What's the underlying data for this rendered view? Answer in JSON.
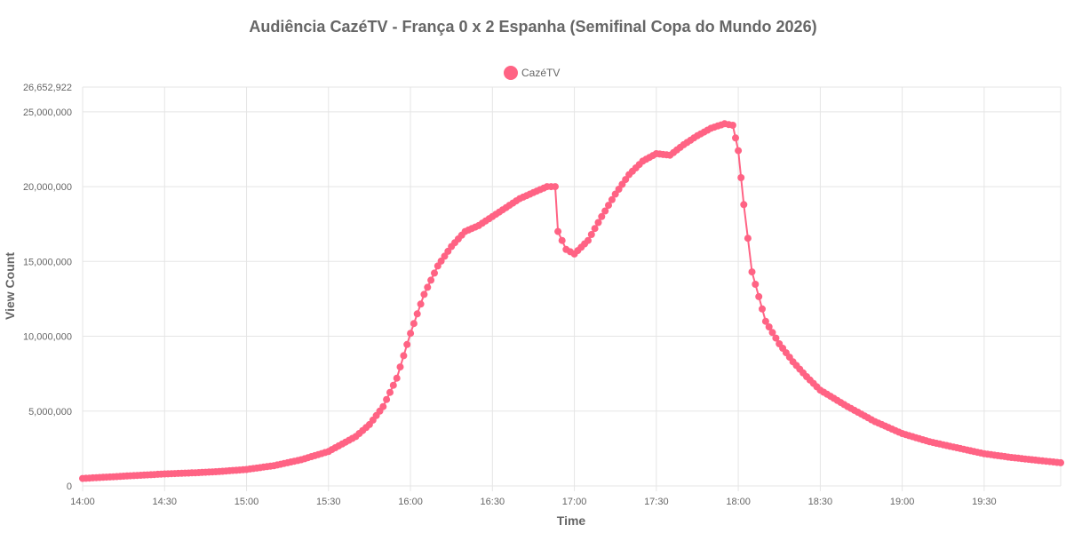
{
  "chart_data": {
    "type": "line",
    "title": "Audiência CazéTV - França 0 x 2 Espanha (Semifinal Copa do Mundo 2026)",
    "xlabel": "Time",
    "ylabel": "View Count",
    "xlim": [
      "14:00",
      "19:58"
    ],
    "ylim": [
      0,
      26652922
    ],
    "x_ticks": [
      "14:00",
      "14:30",
      "15:00",
      "15:30",
      "16:00",
      "16:30",
      "17:00",
      "17:30",
      "18:00",
      "18:30",
      "19:00",
      "19:30"
    ],
    "y_ticks": [
      "0",
      "5,000,000",
      "10,000,000",
      "15,000,000",
      "20,000,000",
      "25,000,000",
      "26,652,922"
    ],
    "y_tick_values": [
      0,
      5000000,
      10000000,
      15000000,
      20000000,
      25000000,
      26652922
    ],
    "grid": true,
    "legend_position": "top-center",
    "colors": {
      "series": "#ff6384",
      "grid": "#e5e5e5",
      "text": "#666666"
    },
    "series": [
      {
        "name": "CazéTV",
        "points": [
          [
            "14:00",
            500000
          ],
          [
            "14:10",
            600000
          ],
          [
            "14:20",
            700000
          ],
          [
            "14:30",
            800000
          ],
          [
            "14:40",
            870000
          ],
          [
            "14:50",
            960000
          ],
          [
            "15:00",
            1100000
          ],
          [
            "15:10",
            1350000
          ],
          [
            "15:20",
            1750000
          ],
          [
            "15:30",
            2300000
          ],
          [
            "15:40",
            3300000
          ],
          [
            "15:45",
            4100000
          ],
          [
            "15:50",
            5300000
          ],
          [
            "15:55",
            7200000
          ],
          [
            "16:00",
            10200000
          ],
          [
            "16:05",
            12800000
          ],
          [
            "16:10",
            14700000
          ],
          [
            "16:15",
            16000000
          ],
          [
            "16:20",
            17000000
          ],
          [
            "16:25",
            17400000
          ],
          [
            "16:30",
            18000000
          ],
          [
            "16:40",
            19200000
          ],
          [
            "16:50",
            20000000
          ],
          [
            "16:53",
            20000000
          ],
          [
            "16:54",
            17000000
          ],
          [
            "16:57",
            15800000
          ],
          [
            "17:00",
            15500000
          ],
          [
            "17:05",
            16400000
          ],
          [
            "17:10",
            18000000
          ],
          [
            "17:15",
            19500000
          ],
          [
            "17:20",
            20800000
          ],
          [
            "17:25",
            21700000
          ],
          [
            "17:30",
            22200000
          ],
          [
            "17:35",
            22100000
          ],
          [
            "17:40",
            22800000
          ],
          [
            "17:45",
            23400000
          ],
          [
            "17:50",
            23900000
          ],
          [
            "17:55",
            24200000
          ],
          [
            "17:58",
            24100000
          ],
          [
            "18:00",
            22400000
          ],
          [
            "18:02",
            18800000
          ],
          [
            "18:05",
            14300000
          ],
          [
            "18:10",
            11000000
          ],
          [
            "18:15",
            9500000
          ],
          [
            "18:20",
            8300000
          ],
          [
            "18:25",
            7300000
          ],
          [
            "18:30",
            6400000
          ],
          [
            "18:40",
            5300000
          ],
          [
            "18:50",
            4300000
          ],
          [
            "19:00",
            3500000
          ],
          [
            "19:10",
            2950000
          ],
          [
            "19:20",
            2550000
          ],
          [
            "19:30",
            2150000
          ],
          [
            "19:40",
            1900000
          ],
          [
            "19:50",
            1700000
          ],
          [
            "19:58",
            1550000
          ]
        ]
      }
    ]
  }
}
